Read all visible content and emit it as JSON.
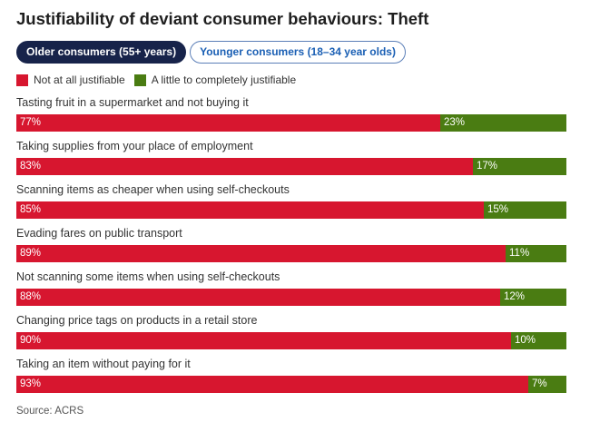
{
  "title": "Justifiability of deviant consumer behaviours: Theft",
  "tabs": [
    {
      "label": "Older consumers (55+ years)",
      "active": true
    },
    {
      "label": "Younger consumers (18–34 year olds)",
      "active": false
    }
  ],
  "source": "Source: ACRS",
  "colors": {
    "not_justifiable": "#d7162f",
    "justifiable": "#4a7c12"
  },
  "chart_data": {
    "type": "bar",
    "orientation": "horizontal",
    "stacked": true,
    "unit": "%",
    "xlim": [
      0,
      100
    ],
    "categories": [
      "Tasting fruit in a supermarket and not buying it",
      "Taking supplies from your place of employment",
      "Scanning items as cheaper when using self-checkouts",
      "Evading fares on public transport",
      "Not scanning some items when using self-checkouts",
      "Changing price tags on products in a retail store",
      "Taking an item without paying for it"
    ],
    "series": [
      {
        "name": "Not at all justifiable",
        "color": "#d7162f",
        "values": [
          77,
          83,
          85,
          89,
          88,
          90,
          93
        ]
      },
      {
        "name": "A little to completely justifiable",
        "color": "#4a7c12",
        "values": [
          23,
          17,
          15,
          11,
          12,
          10,
          7
        ]
      }
    ],
    "legend_position": "top-left",
    "grid": false
  }
}
